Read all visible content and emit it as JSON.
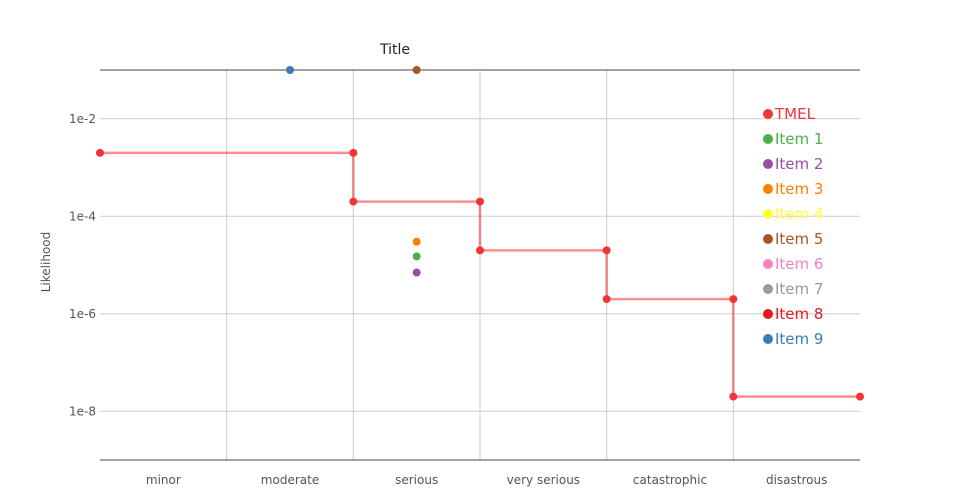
{
  "chart_data": {
    "type": "scatter",
    "title": "Title",
    "xlabel": "",
    "ylabel": "Likelihood",
    "y_scale": "log",
    "ylim": [
      1e-09,
      0.1
    ],
    "y_ticks": [
      {
        "value": 0.01,
        "label": "1e-2"
      },
      {
        "value": 0.0001,
        "label": "1e-4"
      },
      {
        "value": 1e-06,
        "label": "1e-6"
      },
      {
        "value": 1e-08,
        "label": "1e-8"
      }
    ],
    "categories": [
      "minor",
      "moderate",
      "serious",
      "very serious",
      "catastrophic",
      "disastrous"
    ],
    "grid": true,
    "legend_position": "top-right",
    "series": [
      {
        "name": "TMEL",
        "color": "#ef3535",
        "line": true,
        "points": [
          {
            "x": 0,
            "y": 0.002
          },
          {
            "x": 2,
            "y": 0.002
          },
          {
            "x": 2,
            "y": 0.0002
          },
          {
            "x": 3,
            "y": 0.0002
          },
          {
            "x": 3,
            "y": 2e-05
          },
          {
            "x": 4,
            "y": 2e-05
          },
          {
            "x": 4,
            "y": 2e-06
          },
          {
            "x": 5,
            "y": 2e-06
          },
          {
            "x": 5,
            "y": 2e-08
          },
          {
            "x": 6,
            "y": 2e-08
          }
        ]
      },
      {
        "name": "Item 1",
        "color": "#4daf4a",
        "points": [
          {
            "x": 2.5,
            "y": 1.5e-05
          }
        ]
      },
      {
        "name": "Item 2",
        "color": "#984ea3",
        "points": [
          {
            "x": 2.5,
            "y": 7e-06
          }
        ]
      },
      {
        "name": "Item 3",
        "color": "#ff7f00",
        "points": [
          {
            "x": 2.5,
            "y": 3e-05
          }
        ]
      },
      {
        "name": "Item 4",
        "color": "#ffff33",
        "points": []
      },
      {
        "name": "Item 5",
        "color": "#a65628",
        "points": [
          {
            "x": 2.5,
            "y": 0.1
          }
        ]
      },
      {
        "name": "Item 6",
        "color": "#f781bf",
        "points": []
      },
      {
        "name": "Item 7",
        "color": "#999999",
        "points": []
      },
      {
        "name": "Item 8",
        "color": "#e41a1c",
        "points": []
      },
      {
        "name": "Item 9",
        "color": "#377eb8",
        "points": [
          {
            "x": 1.5,
            "y": 0.1
          }
        ]
      }
    ]
  }
}
